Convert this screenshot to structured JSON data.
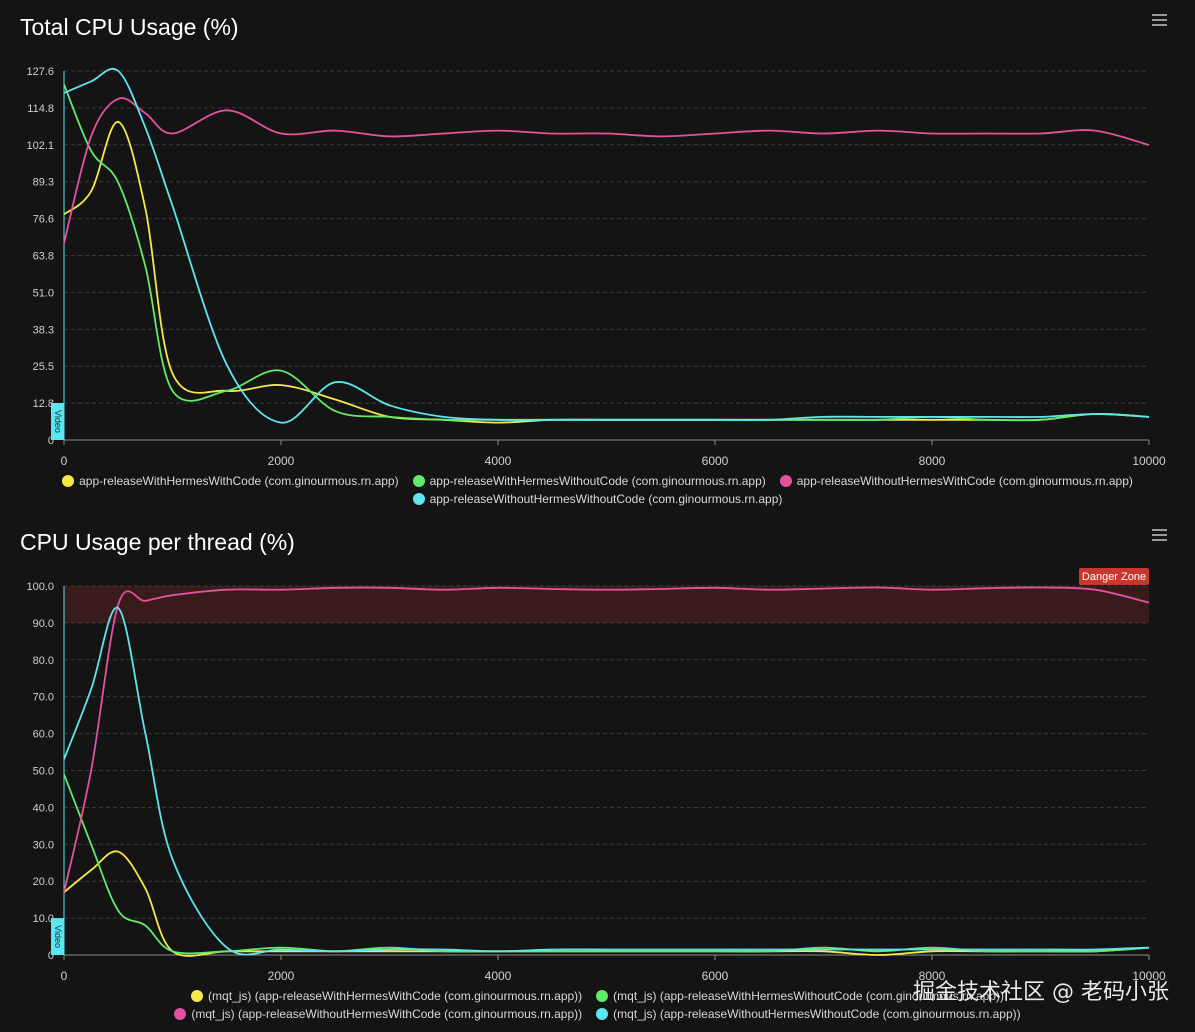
{
  "watermark": "掘金技术社区 @ 老码小张",
  "colors": {
    "yellow": "#f5e94a",
    "green": "#62ea6a",
    "pink": "#e4519f",
    "cyan": "#5de6ef",
    "danger": "#c8372d"
  },
  "chart_data": [
    {
      "type": "line",
      "title": "Total CPU Usage (%)",
      "menu_icon": "hamburger-menu-icon",
      "xlim": [
        0,
        10000
      ],
      "ylim": [
        0,
        127.6
      ],
      "y_ticks": [
        "0",
        "12.8",
        "25.5",
        "38.3",
        "51.0",
        "63.8",
        "76.6",
        "89.3",
        "102.1",
        "114.8",
        "127.6"
      ],
      "x_ticks": [
        "0",
        "2000",
        "4000",
        "6000",
        "8000",
        "10000"
      ],
      "grid": true,
      "legend_position": "bottom",
      "video_marker": {
        "label": "Video",
        "x": 0,
        "ymax": 12.8
      },
      "series": [
        {
          "name": "app-releaseWithHermesWithCode (com.ginourmous.rn.app)",
          "color": "#f5e94a",
          "points": [
            [
              0,
              78
            ],
            [
              250,
              86
            ],
            [
              500,
              110
            ],
            [
              750,
              80
            ],
            [
              1000,
              23
            ],
            [
              1500,
              17
            ],
            [
              2000,
              19
            ],
            [
              2500,
              14
            ],
            [
              3000,
              8
            ],
            [
              3500,
              7
            ],
            [
              4000,
              6
            ],
            [
              4500,
              7
            ],
            [
              5000,
              7
            ],
            [
              5500,
              7
            ],
            [
              6000,
              7
            ],
            [
              6500,
              7
            ],
            [
              7000,
              7
            ],
            [
              7500,
              7
            ],
            [
              8000,
              7
            ],
            [
              8500,
              7
            ],
            [
              9000,
              7
            ],
            [
              9500,
              9
            ],
            [
              10000,
              8
            ]
          ]
        },
        {
          "name": "app-releaseWithHermesWithoutCode (com.ginourmous.rn.app)",
          "color": "#62ea6a",
          "points": [
            [
              0,
              123
            ],
            [
              250,
              100
            ],
            [
              500,
              89
            ],
            [
              750,
              60
            ],
            [
              1000,
              17
            ],
            [
              1500,
              17
            ],
            [
              2000,
              24
            ],
            [
              2500,
              10
            ],
            [
              3000,
              8
            ],
            [
              3500,
              7
            ],
            [
              4000,
              7
            ],
            [
              4500,
              7
            ],
            [
              5000,
              7
            ],
            [
              5500,
              7
            ],
            [
              6000,
              7
            ],
            [
              6500,
              7
            ],
            [
              7000,
              7
            ],
            [
              7500,
              7
            ],
            [
              8000,
              8
            ],
            [
              8500,
              7
            ],
            [
              9000,
              7
            ],
            [
              9500,
              9
            ],
            [
              10000,
              8
            ]
          ]
        },
        {
          "name": "app-releaseWithoutHermesWithCode (com.ginourmous.rn.app)",
          "color": "#e4519f",
          "points": [
            [
              0,
              68
            ],
            [
              250,
              105
            ],
            [
              500,
              118
            ],
            [
              750,
              113
            ],
            [
              1000,
              106
            ],
            [
              1500,
              114
            ],
            [
              2000,
              106
            ],
            [
              2500,
              107
            ],
            [
              3000,
              105
            ],
            [
              3500,
              106
            ],
            [
              4000,
              107
            ],
            [
              4500,
              106
            ],
            [
              5000,
              106
            ],
            [
              5500,
              105
            ],
            [
              6000,
              106
            ],
            [
              6500,
              107
            ],
            [
              7000,
              106
            ],
            [
              7500,
              107
            ],
            [
              8000,
              106
            ],
            [
              8500,
              106
            ],
            [
              9000,
              106
            ],
            [
              9500,
              107
            ],
            [
              10000,
              102
            ]
          ]
        },
        {
          "name": "app-releaseWithoutHermesWithoutCode (com.ginourmous.rn.app)",
          "color": "#5de6ef",
          "points": [
            [
              0,
              120
            ],
            [
              250,
              124
            ],
            [
              500,
              127.6
            ],
            [
              750,
              108
            ],
            [
              1000,
              81
            ],
            [
              1500,
              26
            ],
            [
              2000,
              6
            ],
            [
              2500,
              20
            ],
            [
              3000,
              12
            ],
            [
              3500,
              8
            ],
            [
              4000,
              7
            ],
            [
              4500,
              7
            ],
            [
              5000,
              7
            ],
            [
              5500,
              7
            ],
            [
              6000,
              7
            ],
            [
              6500,
              7
            ],
            [
              7000,
              8
            ],
            [
              7500,
              8
            ],
            [
              8000,
              8
            ],
            [
              8500,
              8
            ],
            [
              9000,
              8
            ],
            [
              9500,
              9
            ],
            [
              10000,
              8
            ]
          ]
        }
      ]
    },
    {
      "type": "line",
      "title": "CPU Usage per thread (%)",
      "menu_icon": "hamburger-menu-icon",
      "xlim": [
        0,
        10000
      ],
      "ylim": [
        0,
        100
      ],
      "y_ticks": [
        "0",
        "10.0",
        "20.0",
        "30.0",
        "40.0",
        "50.0",
        "60.0",
        "70.0",
        "80.0",
        "90.0",
        "100.0"
      ],
      "x_ticks": [
        "0",
        "2000",
        "4000",
        "6000",
        "8000",
        "10000"
      ],
      "grid": true,
      "legend_position": "bottom",
      "danger_zone": {
        "label": "Danger Zone",
        "from": 90,
        "to": 100
      },
      "video_marker": {
        "label": "Video",
        "x": 0,
        "ymax": 10
      },
      "series": [
        {
          "name": "(mqt_js) (app-releaseWithHermesWithCode (com.ginourmous.rn.app))",
          "color": "#f5e94a",
          "points": [
            [
              0,
              17
            ],
            [
              250,
              23
            ],
            [
              500,
              28
            ],
            [
              750,
              18
            ],
            [
              1000,
              1
            ],
            [
              1500,
              1
            ],
            [
              2000,
              1
            ],
            [
              2500,
              1
            ],
            [
              3000,
              1
            ],
            [
              3500,
              1
            ],
            [
              4000,
              1
            ],
            [
              4500,
              1
            ],
            [
              5000,
              1
            ],
            [
              5500,
              1
            ],
            [
              6000,
              1
            ],
            [
              6500,
              1
            ],
            [
              7000,
              1
            ],
            [
              7500,
              0
            ],
            [
              8000,
              1
            ],
            [
              8500,
              1
            ],
            [
              9000,
              1
            ],
            [
              9500,
              1
            ],
            [
              10000,
              2
            ]
          ]
        },
        {
          "name": "(mqt_js) (app-releaseWithHermesWithoutCode (com.ginourmous.rn.app))",
          "color": "#62ea6a",
          "points": [
            [
              0,
              49
            ],
            [
              250,
              30
            ],
            [
              500,
              12
            ],
            [
              750,
              8
            ],
            [
              1000,
              1
            ],
            [
              1500,
              1
            ],
            [
              2000,
              2
            ],
            [
              2500,
              1
            ],
            [
              3000,
              2
            ],
            [
              3500,
              1
            ],
            [
              4000,
              1
            ],
            [
              4500,
              1
            ],
            [
              5000,
              1
            ],
            [
              5500,
              1
            ],
            [
              6000,
              1
            ],
            [
              6500,
              1
            ],
            [
              7000,
              2
            ],
            [
              7500,
              1
            ],
            [
              8000,
              2
            ],
            [
              8500,
              1
            ],
            [
              9000,
              1
            ],
            [
              9500,
              1
            ],
            [
              10000,
              2
            ]
          ]
        },
        {
          "name": "(mqt_js) (app-releaseWithoutHermesWithCode (com.ginourmous.rn.app))",
          "color": "#e4519f",
          "points": [
            [
              0,
              17
            ],
            [
              250,
              50
            ],
            [
              500,
              95
            ],
            [
              750,
              96
            ],
            [
              1000,
              97.5
            ],
            [
              1500,
              99
            ],
            [
              2000,
              99
            ],
            [
              2500,
              99.5
            ],
            [
              3000,
              99.5
            ],
            [
              3500,
              99
            ],
            [
              4000,
              99.5
            ],
            [
              4500,
              99.2
            ],
            [
              5000,
              99
            ],
            [
              5500,
              99.2
            ],
            [
              6000,
              99.5
            ],
            [
              6500,
              99
            ],
            [
              7000,
              99.3
            ],
            [
              7500,
              99.6
            ],
            [
              8000,
              99
            ],
            [
              8500,
              99.4
            ],
            [
              9000,
              99.6
            ],
            [
              9500,
              99
            ],
            [
              10000,
              95.5
            ]
          ]
        },
        {
          "name": "(mqt_js) (app-releaseWithoutHermesWithoutCode (com.ginourmous.rn.app))",
          "color": "#5de6ef",
          "points": [
            [
              0,
              53
            ],
            [
              250,
              72
            ],
            [
              500,
              94
            ],
            [
              750,
              60
            ],
            [
              1000,
              26
            ],
            [
              1500,
              2
            ],
            [
              2000,
              1.5
            ],
            [
              2500,
              1
            ],
            [
              3000,
              1.5
            ],
            [
              3500,
              1.5
            ],
            [
              4000,
              1
            ],
            [
              4500,
              1.5
            ],
            [
              5000,
              1.5
            ],
            [
              5500,
              1.5
            ],
            [
              6000,
              1.5
            ],
            [
              6500,
              1.5
            ],
            [
              7000,
              1.5
            ],
            [
              7500,
              1.5
            ],
            [
              8000,
              1.5
            ],
            [
              8500,
              1.5
            ],
            [
              9000,
              1.5
            ],
            [
              9500,
              1.5
            ],
            [
              10000,
              2
            ]
          ]
        }
      ]
    }
  ]
}
